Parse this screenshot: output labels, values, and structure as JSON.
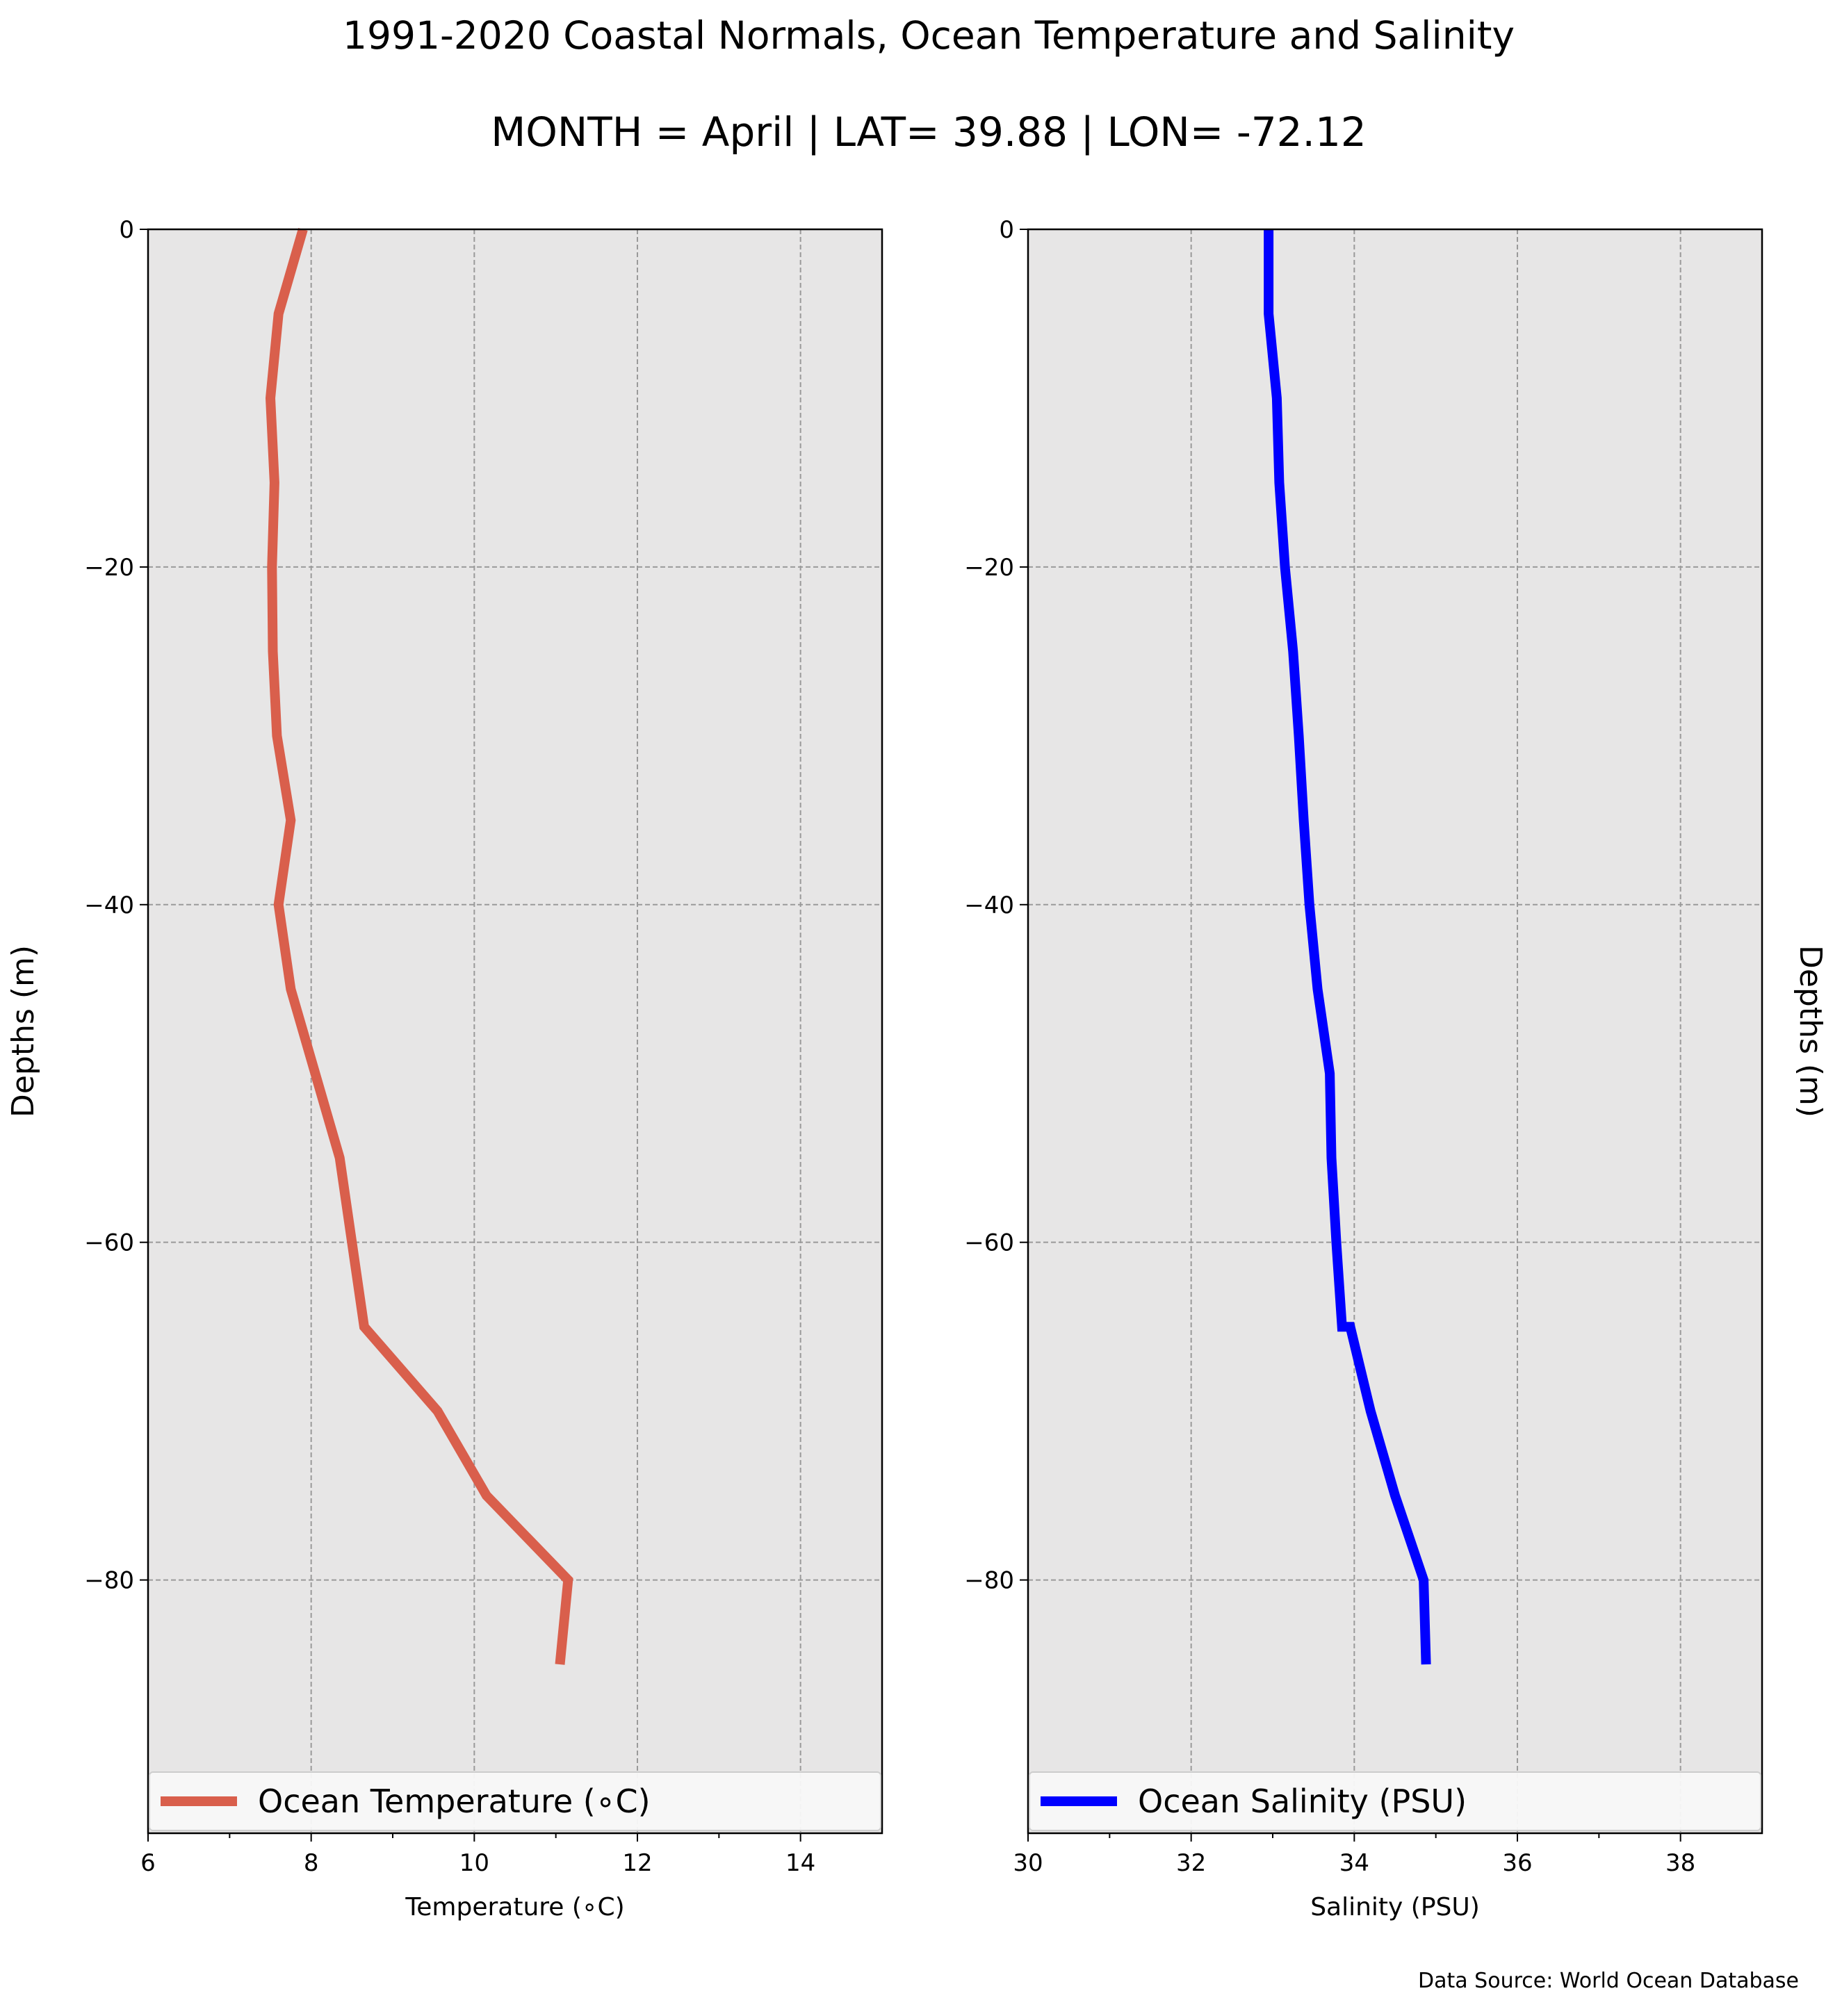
{
  "figure": {
    "title": "1991-2020 Coastal Normals, Ocean Temperature and Salinity",
    "subtitle": "MONTH = April | LAT= 39.88 | LON= -72.12",
    "source": "Data Source: World Ocean Database"
  },
  "chart_data": [
    {
      "type": "line",
      "orientation": "vertical-profile",
      "series": [
        {
          "name": "Ocean Temperature ($^\\circ$C)",
          "color": "#d95f4c",
          "x": [
            7.9,
            7.6,
            7.5,
            7.55,
            7.52,
            7.53,
            7.58,
            7.75,
            7.6,
            7.75,
            8.35,
            8.65,
            9.55,
            10.15,
            11.15,
            11.05
          ],
          "y": [
            0,
            -5,
            -10,
            -15,
            -20,
            -25,
            -30,
            -35,
            -40,
            -45,
            -55,
            -65,
            -70,
            -75,
            -80,
            -85
          ]
        }
      ],
      "legend_label": "Ocean Temperature (∘C)",
      "xlabel": "Temperature (∘C)",
      "ylabel": "Depths (m)",
      "xlim": [
        6,
        15
      ],
      "ylim": [
        -95,
        0
      ],
      "xticks": [
        "6",
        "8",
        "10",
        "12",
        "14"
      ],
      "yticks": [
        "0",
        "−20",
        "−40",
        "−60",
        "−80"
      ],
      "grid": true,
      "legend": "bottom"
    },
    {
      "type": "line",
      "orientation": "vertical-profile",
      "series": [
        {
          "name": "Ocean Salinity (PSU)",
          "color": "#0000ff",
          "x": [
            32.95,
            32.95,
            33.05,
            33.08,
            33.15,
            33.25,
            33.32,
            33.38,
            33.45,
            33.55,
            33.7,
            33.72,
            33.78,
            33.85,
            33.95,
            34.2,
            34.5,
            34.85,
            34.88
          ],
          "y": [
            0,
            -5,
            -10,
            -15,
            -20,
            -25,
            -30,
            -35,
            -40,
            -45,
            -50,
            -55,
            -60,
            -65,
            -65,
            -70,
            -75,
            -80,
            -85
          ]
        }
      ],
      "legend_label": "Ocean Salinity (PSU)",
      "xlabel": "Salinity (PSU)",
      "ylabel": "Depths (m)",
      "xlim": [
        30,
        39
      ],
      "ylim": [
        -95,
        0
      ],
      "xticks": [
        "30",
        "32",
        "34",
        "36",
        "38"
      ],
      "yticks": [
        "0",
        "−20",
        "−40",
        "−60",
        "−80"
      ],
      "grid": true,
      "legend": "bottom"
    }
  ]
}
